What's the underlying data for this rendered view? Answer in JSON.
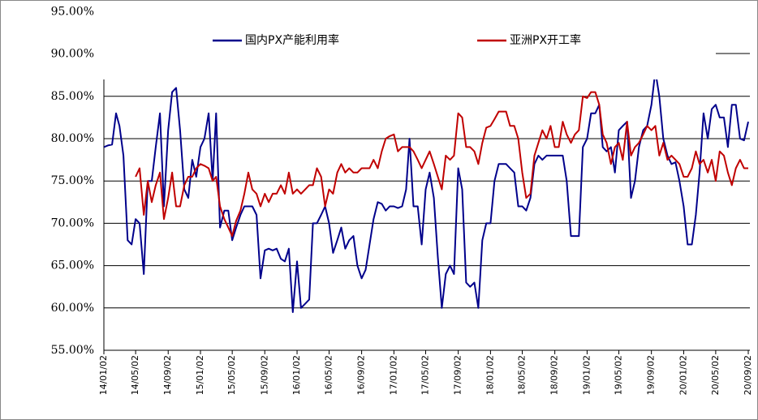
{
  "chart_data": {
    "type": "line",
    "series": [
      {
        "name": "国内PX产能利用率",
        "color": "#00008b",
        "values": [
          79,
          79.2,
          79.3,
          83,
          81.5,
          78,
          68,
          67.5,
          70.5,
          70,
          64,
          75,
          75,
          79,
          83,
          72,
          81,
          85.5,
          86,
          81,
          74,
          73,
          77.5,
          75.5,
          79,
          80,
          83,
          75,
          83,
          69.5,
          71.5,
          71.5,
          68,
          69.5,
          71,
          72,
          72,
          72,
          71,
          63.5,
          66.8,
          67,
          66.8,
          67,
          65.8,
          65.5,
          67,
          59.5,
          65.5,
          60,
          60.5,
          61,
          70,
          70,
          71,
          72,
          70,
          66.5,
          68,
          69.5,
          67,
          68,
          68.5,
          65,
          63.5,
          64.5,
          67.5,
          70.5,
          72.5,
          72.3,
          71.5,
          72,
          72,
          71.8,
          72,
          74,
          80,
          72,
          72,
          67.5,
          74,
          76,
          73,
          66,
          60,
          64,
          65,
          64,
          76.5,
          74,
          63,
          62.5,
          63,
          60,
          68,
          70,
          70,
          75,
          77,
          77,
          77,
          76.5,
          76,
          72,
          72,
          71.5,
          73,
          77,
          78,
          77.5,
          78,
          78,
          78,
          78,
          78,
          75,
          68.5,
          68.5,
          68.5,
          79,
          80,
          83,
          83,
          84,
          79,
          78.5,
          79,
          76,
          81,
          81.5,
          82,
          73,
          75,
          79,
          81,
          81.5,
          84,
          88,
          85,
          80,
          78,
          77,
          77.2,
          75,
          72,
          67.5,
          67.5,
          71,
          76,
          83,
          80,
          83.5,
          84,
          82.5,
          82.5,
          79,
          84,
          84,
          80,
          79.8,
          82
        ]
      },
      {
        "name": "亚洲PX开工率",
        "color": "#c00000",
        "values": [
          null,
          null,
          null,
          null,
          null,
          null,
          null,
          null,
          75.5,
          76.5,
          71,
          75,
          72.5,
          74.5,
          76,
          70.5,
          73,
          76,
          72,
          72,
          74.5,
          75.5,
          75.5,
          76.5,
          77,
          76.8,
          76.5,
          75,
          75.5,
          72,
          70.5,
          69.5,
          68.5,
          70.3,
          71.5,
          73.5,
          76,
          74,
          73.5,
          72,
          73.5,
          72.5,
          73.5,
          73.5,
          74.5,
          73.5,
          76,
          73.5,
          74,
          73.5,
          74,
          74.5,
          74.5,
          76.5,
          75.5,
          72,
          74,
          73.5,
          76,
          77,
          76,
          76.5,
          76,
          76,
          76.5,
          76.5,
          76.5,
          77.5,
          76.5,
          78.5,
          80,
          80.3,
          80.5,
          78.5,
          79,
          79,
          79,
          78.5,
          77.5,
          76.5,
          77.5,
          78.5,
          77,
          75.5,
          74,
          78,
          77.5,
          78,
          83,
          82.5,
          79,
          79,
          78.5,
          77,
          79.5,
          81.3,
          81.5,
          82.3,
          83.2,
          83.2,
          83.2,
          81.5,
          81.5,
          80,
          76,
          73,
          73.5,
          78,
          79.5,
          81,
          80,
          81.5,
          79,
          79,
          82,
          80.5,
          79.5,
          80.5,
          81,
          85,
          84.8,
          85.5,
          85.5,
          84,
          80.5,
          79.5,
          77,
          79,
          79.5,
          77.5,
          82,
          78,
          79,
          79.5,
          80.5,
          81.5,
          81,
          81.5,
          78,
          79.5,
          77.5,
          78,
          77.5,
          77,
          75.5,
          75.5,
          76.5,
          78.5,
          77,
          77.5,
          76,
          77.5,
          75,
          78.5,
          78,
          76,
          74.5,
          76.5,
          77.5,
          76.5,
          76.5
        ]
      }
    ],
    "x": [
      "14/01/02",
      "14/01/17",
      "14/02/02",
      "14/02/17",
      "14/03/02",
      "14/03/17",
      "14/04/02",
      "14/04/17",
      "14/05/02",
      "14/05/17",
      "14/06/02",
      "14/06/17",
      "14/07/02",
      "14/07/17",
      "14/08/02",
      "14/08/17",
      "14/09/02",
      "14/09/17",
      "14/10/02",
      "14/10/17",
      "14/11/02",
      "14/11/17",
      "14/12/02",
      "14/12/17",
      "15/01/02",
      "15/01/17",
      "15/02/02",
      "15/02/17",
      "15/03/02",
      "15/03/17",
      "15/04/02",
      "15/04/17",
      "15/05/02",
      "15/05/17",
      "15/06/02",
      "15/06/17",
      "15/07/02",
      "15/07/17",
      "15/08/02",
      "15/08/17",
      "15/09/02",
      "15/09/17",
      "15/10/02",
      "15/10/17",
      "15/11/02",
      "15/11/17",
      "15/12/02",
      "15/12/17",
      "16/01/02",
      "16/01/17",
      "16/02/02",
      "16/02/17",
      "16/03/02",
      "16/03/17",
      "16/04/02",
      "16/04/17",
      "16/05/02",
      "16/05/17",
      "16/06/02",
      "16/06/17",
      "16/07/02",
      "16/07/17",
      "16/08/02",
      "16/08/17",
      "16/09/02",
      "16/09/17",
      "16/10/02",
      "16/10/17",
      "16/11/02",
      "16/11/17",
      "16/12/02",
      "16/12/17",
      "17/01/02",
      "17/01/17",
      "17/02/02",
      "17/02/17",
      "17/03/02",
      "17/03/17",
      "17/04/02",
      "17/04/17",
      "17/05/02",
      "17/05/17",
      "17/06/02",
      "17/06/17",
      "17/07/02",
      "17/07/17",
      "17/08/02",
      "17/08/17",
      "17/09/02",
      "17/09/17",
      "17/10/02",
      "17/10/17",
      "17/11/02",
      "17/11/17",
      "17/12/02",
      "17/12/17",
      "18/01/02",
      "18/01/17",
      "18/02/02",
      "18/02/17",
      "18/03/02",
      "18/03/17",
      "18/04/02",
      "18/04/17",
      "18/05/02",
      "18/05/17",
      "18/06/02",
      "18/06/17",
      "18/07/02",
      "18/07/17",
      "18/08/02",
      "18/08/17",
      "18/09/02",
      "18/09/17",
      "18/10/02",
      "18/10/17",
      "18/11/02",
      "18/11/17",
      "18/12/02",
      "18/12/17",
      "19/01/02",
      "19/01/17",
      "19/02/02",
      "19/02/17",
      "19/03/02",
      "19/03/17",
      "19/04/02",
      "19/04/17",
      "19/05/02",
      "19/05/17",
      "19/06/02",
      "19/06/17",
      "19/07/02",
      "19/07/17",
      "19/08/02",
      "19/08/17",
      "19/09/02",
      "19/09/17",
      "19/10/02",
      "19/10/17",
      "19/11/02",
      "19/11/17",
      "19/12/02",
      "19/12/17",
      "20/01/02",
      "20/01/17",
      "20/02/02",
      "20/02/17",
      "20/03/02",
      "20/03/17",
      "20/04/02",
      "20/04/17",
      "20/05/02",
      "20/05/17",
      "20/06/02",
      "20/06/17",
      "20/07/02",
      "20/07/17",
      "20/08/02",
      "20/08/17",
      "20/09/02"
    ],
    "xlim": [
      "14/01/02",
      "20/09/02"
    ],
    "xticks": [
      "14/01/02",
      "14/05/02",
      "14/09/02",
      "15/01/02",
      "15/05/02",
      "15/09/02",
      "16/01/02",
      "16/05/02",
      "16/09/02",
      "17/01/02",
      "17/05/02",
      "17/09/02",
      "18/01/02",
      "18/05/02",
      "18/09/02",
      "19/01/02",
      "19/05/02",
      "19/09/02",
      "20/01/02",
      "20/05/02",
      "20/09/02"
    ],
    "ylim": [
      55,
      95
    ],
    "yticks": [
      {
        "value": 55,
        "label": "55.00%"
      },
      {
        "value": 60,
        "label": "60.00%"
      },
      {
        "value": 65,
        "label": "65.00%"
      },
      {
        "value": 70,
        "label": "70.00%"
      },
      {
        "value": 75,
        "label": "75.00%"
      },
      {
        "value": 80,
        "label": "80.00%"
      },
      {
        "value": 85,
        "label": "85.00%"
      },
      {
        "value": 90,
        "label": "90.00%"
      },
      {
        "value": 95,
        "label": "95.00%"
      }
    ],
    "grid": true,
    "legend": "top"
  }
}
